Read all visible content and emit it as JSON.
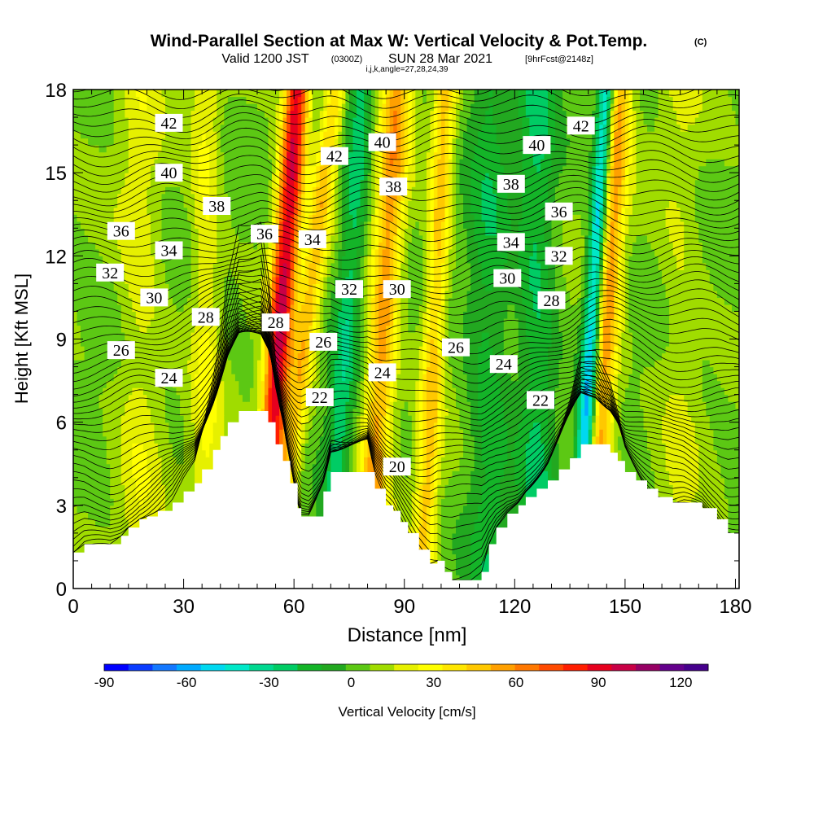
{
  "header": {
    "title": "Wind-Parallel Section at Max W: Vertical Velocity & Pot.Temp.",
    "copyright": "(C)",
    "valid_prefix": "Valid 1200 JST",
    "valid_z": "(0300Z)",
    "valid_date": "SUN 28 Mar 2021",
    "forecast": "[9hrFcst@2148z]",
    "indices": "i,j,k,angle=27,28,24,39"
  },
  "colors": {
    "terrain": "#ffffff",
    "contour": "#000000",
    "background_fill": "#5cc814"
  },
  "chart_data": {
    "type": "heatmap",
    "xlabel": "Distance [nm]",
    "ylabel": "Height [Kft MSL]",
    "xlim": [
      0,
      181
    ],
    "ylim": [
      0,
      18
    ],
    "x_ticks": [
      0,
      30,
      60,
      90,
      120,
      150,
      180
    ],
    "y_ticks": [
      0,
      3,
      6,
      9,
      12,
      15,
      18
    ],
    "fill_variable": "vertical velocity (cm/s)",
    "contour_variable": "potential temperature",
    "terrain_profile_kft": {
      "x": [
        0,
        3,
        10,
        13,
        15,
        18,
        20,
        23,
        27,
        30,
        33,
        35,
        38,
        40,
        42,
        45,
        48,
        51,
        53,
        55,
        57,
        59,
        61,
        62,
        64,
        68,
        70,
        77,
        80,
        82,
        85,
        87,
        89,
        91,
        94,
        97,
        99,
        101,
        103,
        105,
        108,
        111,
        113,
        115,
        118,
        121,
        123,
        126,
        129,
        132,
        135,
        138,
        142,
        146,
        148,
        150,
        153,
        156,
        159,
        163,
        166,
        171,
        175,
        178,
        181
      ],
      "height": [
        1.3,
        1.6,
        1.6,
        1.9,
        2.2,
        2.5,
        2.6,
        2.8,
        3.1,
        3.5,
        3.8,
        4.3,
        5.0,
        5.5,
        6.0,
        6.4,
        6.4,
        6.4,
        6.0,
        5.2,
        4.6,
        3.8,
        2.9,
        2.6,
        2.6,
        3.5,
        4.2,
        4.2,
        4.2,
        3.6,
        3.0,
        2.8,
        2.4,
        2.0,
        1.4,
        0.9,
        1.0,
        0.6,
        0.3,
        0.3,
        0.3,
        0.6,
        1.6,
        2.2,
        2.7,
        3.0,
        3.3,
        3.6,
        3.9,
        4.3,
        4.7,
        5.2,
        5.2,
        4.9,
        4.6,
        4.2,
        3.9,
        3.6,
        3.3,
        3.1,
        3.1,
        2.9,
        2.5,
        2.0,
        1.9
      ]
    },
    "velocity_bands": [
      {
        "x_center": 56,
        "slope_nm_per_kft": 0.55,
        "width_nm": 3.5,
        "value": 90
      },
      {
        "x_center": 63,
        "slope_nm_per_kft": 0.9,
        "width_nm": 3,
        "value": 40
      },
      {
        "x_center": 74,
        "slope_nm_per_kft": 0.5,
        "width_nm": 3.5,
        "value": -30
      },
      {
        "x_center": 84,
        "slope_nm_per_kft": 0.45,
        "width_nm": 4,
        "value": 50
      },
      {
        "x_center": 98,
        "slope_nm_per_kft": 0.35,
        "width_nm": 3,
        "value": 40
      },
      {
        "x_center": 113,
        "slope_nm_per_kft": 0.0,
        "width_nm": 6,
        "value": -20
      },
      {
        "x_center": 126,
        "slope_nm_per_kft": 0.0,
        "width_nm": 5,
        "value": -25
      },
      {
        "x_center": 141,
        "slope_nm_per_kft": 0.45,
        "width_nm": 2.5,
        "value": -85
      },
      {
        "x_center": 144,
        "slope_nm_per_kft": 0.4,
        "width_nm": 4,
        "value": 60
      },
      {
        "x_center": 36,
        "slope_nm_per_kft": 0.0,
        "width_nm": 4,
        "value": 20
      },
      {
        "x_center": 18,
        "slope_nm_per_kft": 0.0,
        "width_nm": 6,
        "value": 15
      },
      {
        "x_center": 165,
        "slope_nm_per_kft": 0.0,
        "width_nm": 6,
        "value": 10
      }
    ],
    "contour_labels": [
      {
        "text": "42",
        "x": 26,
        "y": 16.8
      },
      {
        "text": "40",
        "x": 26,
        "y": 15.0
      },
      {
        "text": "38",
        "x": 39,
        "y": 13.8
      },
      {
        "text": "36",
        "x": 13,
        "y": 12.9
      },
      {
        "text": "34",
        "x": 26,
        "y": 12.2
      },
      {
        "text": "32",
        "x": 10,
        "y": 11.4
      },
      {
        "text": "30",
        "x": 22,
        "y": 10.5
      },
      {
        "text": "28",
        "x": 36,
        "y": 9.8
      },
      {
        "text": "26",
        "x": 13,
        "y": 8.6
      },
      {
        "text": "24",
        "x": 26,
        "y": 7.6
      },
      {
        "text": "36",
        "x": 52,
        "y": 12.8
      },
      {
        "text": "28",
        "x": 55,
        "y": 9.6
      },
      {
        "text": "42",
        "x": 71,
        "y": 15.6
      },
      {
        "text": "34",
        "x": 65,
        "y": 12.6
      },
      {
        "text": "26",
        "x": 68,
        "y": 8.9
      },
      {
        "text": "22",
        "x": 67,
        "y": 6.9
      },
      {
        "text": "40",
        "x": 84,
        "y": 16.1
      },
      {
        "text": "38",
        "x": 87,
        "y": 14.5
      },
      {
        "text": "32",
        "x": 75,
        "y": 10.8
      },
      {
        "text": "30",
        "x": 88,
        "y": 10.8
      },
      {
        "text": "24",
        "x": 84,
        "y": 7.8
      },
      {
        "text": "20",
        "x": 88,
        "y": 4.4
      },
      {
        "text": "26",
        "x": 104,
        "y": 8.7
      },
      {
        "text": "42",
        "x": 138,
        "y": 16.7
      },
      {
        "text": "40",
        "x": 126,
        "y": 16.0
      },
      {
        "text": "38",
        "x": 119,
        "y": 14.6
      },
      {
        "text": "36",
        "x": 132,
        "y": 13.6
      },
      {
        "text": "34",
        "x": 119,
        "y": 12.5
      },
      {
        "text": "32",
        "x": 132,
        "y": 12.0
      },
      {
        "text": "30",
        "x": 118,
        "y": 11.2
      },
      {
        "text": "28",
        "x": 130,
        "y": 10.4
      },
      {
        "text": "24",
        "x": 117,
        "y": 8.1
      },
      {
        "text": "22",
        "x": 127,
        "y": 6.8
      }
    ]
  },
  "colorbar": {
    "label": "Vertical Velocity [cm/s]",
    "tick_labels": [
      "-90",
      "-60",
      "-30",
      "0",
      "30",
      "60",
      "90",
      "120"
    ],
    "tick_values": [
      -90,
      -60,
      -30,
      0,
      30,
      60,
      90,
      120
    ],
    "range": [
      -90,
      130
    ],
    "colors": [
      "#0000ff",
      "#0a3cff",
      "#1478ff",
      "#00aaff",
      "#00d8f0",
      "#00e8c8",
      "#00d890",
      "#00cc64",
      "#14b428",
      "#22a820",
      "#5cc814",
      "#a0dc00",
      "#e6f000",
      "#ffff00",
      "#ffe600",
      "#ffc800",
      "#ffa000",
      "#ff7800",
      "#ff4a00",
      "#ff1e00",
      "#e6001e",
      "#c80046",
      "#960064",
      "#64008c",
      "#46008c"
    ]
  }
}
